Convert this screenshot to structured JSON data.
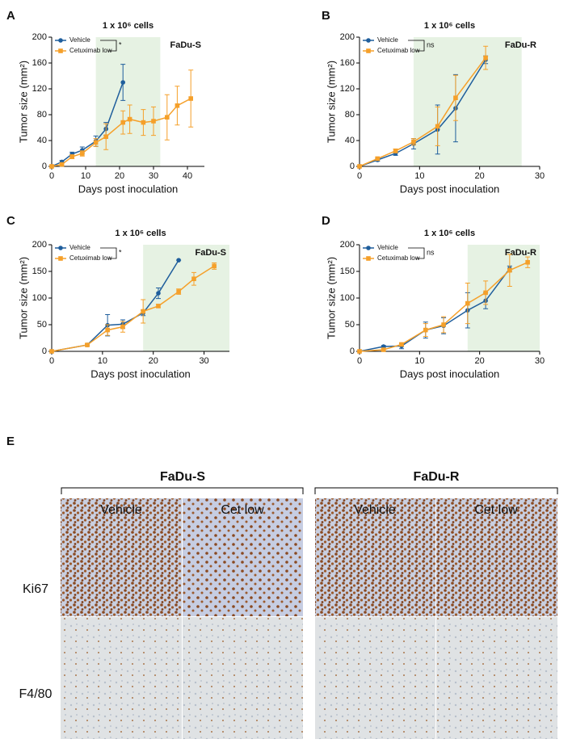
{
  "chart_data": [
    {
      "type": "line",
      "panel": "A",
      "title": "1 x 10⁶ cells",
      "annotation": "FaDu-S",
      "significance": "*",
      "x_label": "Days post inoculation",
      "y_label": "Tumor size (mm²)",
      "xlim": [
        0,
        45
      ],
      "xticks": [
        0,
        10,
        20,
        30,
        40
      ],
      "ylim": [
        0,
        200
      ],
      "yticks": [
        0,
        40,
        80,
        120,
        160,
        200
      ],
      "shaded_range": [
        13,
        32
      ],
      "shade_color": "#e6f2e3",
      "series": [
        {
          "name": "Vehicle",
          "color": "#1f5e9c",
          "x": [
            0,
            3,
            6,
            9,
            13,
            16,
            21
          ],
          "values": [
            0,
            7,
            19,
            25,
            39,
            58,
            130
          ],
          "errors": [
            0,
            2,
            3,
            5,
            8,
            10,
            28
          ]
        },
        {
          "name": "Cetuximab low",
          "color": "#f5a02a",
          "x": [
            0,
            3,
            6,
            9,
            13,
            16,
            21,
            23,
            27,
            30,
            34,
            37,
            41
          ],
          "values": [
            0,
            3,
            15,
            20,
            37,
            46,
            68,
            73,
            68,
            70,
            76,
            94,
            105
          ],
          "errors": [
            0,
            2,
            3,
            4,
            6,
            20,
            18,
            22,
            20,
            22,
            35,
            30,
            44
          ]
        }
      ]
    },
    {
      "type": "line",
      "panel": "B",
      "title": "1 x 10⁶ cells",
      "annotation": "FaDu-R",
      "significance": "ns",
      "x_label": "Days post inoculation",
      "y_label": "Tumor size (mm²)",
      "xlim": [
        0,
        30
      ],
      "xticks": [
        0,
        10,
        20,
        30
      ],
      "ylim": [
        0,
        200
      ],
      "yticks": [
        0,
        40,
        80,
        120,
        160,
        200
      ],
      "shaded_range": [
        9,
        27
      ],
      "shade_color": "#e6f2e3",
      "series": [
        {
          "name": "Vehicle",
          "color": "#1f5e9c",
          "x": [
            0,
            3,
            6,
            9,
            13,
            16,
            21
          ],
          "values": [
            0,
            10,
            20,
            35,
            57,
            90,
            165
          ],
          "errors": [
            0,
            2,
            3,
            8,
            38,
            52,
            6
          ]
        },
        {
          "name": "Cetuximab low",
          "color": "#f5a02a",
          "x": [
            0,
            3,
            6,
            9,
            13,
            16,
            21
          ],
          "values": [
            0,
            12,
            24,
            38,
            62,
            106,
            168
          ],
          "errors": [
            0,
            2,
            3,
            5,
            30,
            35,
            18
          ]
        }
      ]
    },
    {
      "type": "line",
      "panel": "C",
      "title": "1 x 10⁶ cells",
      "annotation": "FaDu-S",
      "significance": "*",
      "x_label": "Days post inoculation",
      "y_label": "Tumor size (mm²)",
      "xlim": [
        0,
        35
      ],
      "xticks": [
        0,
        10,
        20,
        30
      ],
      "ylim": [
        0,
        200
      ],
      "yticks": [
        0,
        50,
        100,
        150,
        200
      ],
      "shaded_range": [
        18,
        35
      ],
      "shade_color": "#e6f2e3",
      "series": [
        {
          "name": "Vehicle",
          "color": "#1f5e9c",
          "x": [
            0,
            7,
            11,
            14,
            18,
            21,
            25
          ],
          "values": [
            0,
            12,
            49,
            51,
            72,
            109,
            171
          ],
          "errors": [
            0,
            2,
            20,
            8,
            5,
            10,
            0
          ]
        },
        {
          "name": "Cetuximab low",
          "color": "#f5a02a",
          "x": [
            0,
            7,
            11,
            14,
            18,
            21,
            25,
            28,
            32
          ],
          "values": [
            0,
            12,
            40,
            46,
            75,
            85,
            112,
            136,
            160
          ],
          "errors": [
            0,
            2,
            10,
            10,
            22,
            3,
            5,
            12,
            6
          ]
        }
      ]
    },
    {
      "type": "line",
      "panel": "D",
      "title": "1 x 10⁶ cells",
      "annotation": "FaDu-R",
      "significance": "ns",
      "x_label": "Days post inoculation",
      "y_label": "Tumor size (mm²)",
      "xlim": [
        0,
        30
      ],
      "xticks": [
        0,
        10,
        20,
        30
      ],
      "ylim": [
        0,
        200
      ],
      "yticks": [
        0,
        50,
        100,
        150,
        200
      ],
      "shaded_range": [
        18,
        30
      ],
      "shade_color": "#e6f2e3",
      "series": [
        {
          "name": "Vehicle",
          "color": "#1f5e9c",
          "x": [
            0,
            4,
            7,
            11,
            14,
            18,
            21,
            25
          ],
          "values": [
            0,
            9,
            10,
            40,
            48,
            77,
            95,
            155
          ],
          "errors": [
            0,
            2,
            5,
            15,
            15,
            33,
            15,
            5
          ]
        },
        {
          "name": "Cetuximab low",
          "color": "#f5a02a",
          "x": [
            0,
            4,
            7,
            11,
            14,
            18,
            21,
            25,
            28
          ],
          "values": [
            0,
            3,
            13,
            40,
            50,
            90,
            110,
            152,
            167
          ],
          "errors": [
            0,
            2,
            3,
            12,
            15,
            38,
            22,
            30,
            10
          ]
        }
      ]
    }
  ],
  "panel_e": {
    "panel": "E",
    "groups": [
      {
        "title": "FaDu-S",
        "columns": [
          "Vehicle",
          "Cet low"
        ]
      },
      {
        "title": "FaDu-R",
        "columns": [
          "Vehicle",
          "Cet low"
        ]
      }
    ],
    "rows": [
      "Ki67",
      "F4/80"
    ]
  }
}
